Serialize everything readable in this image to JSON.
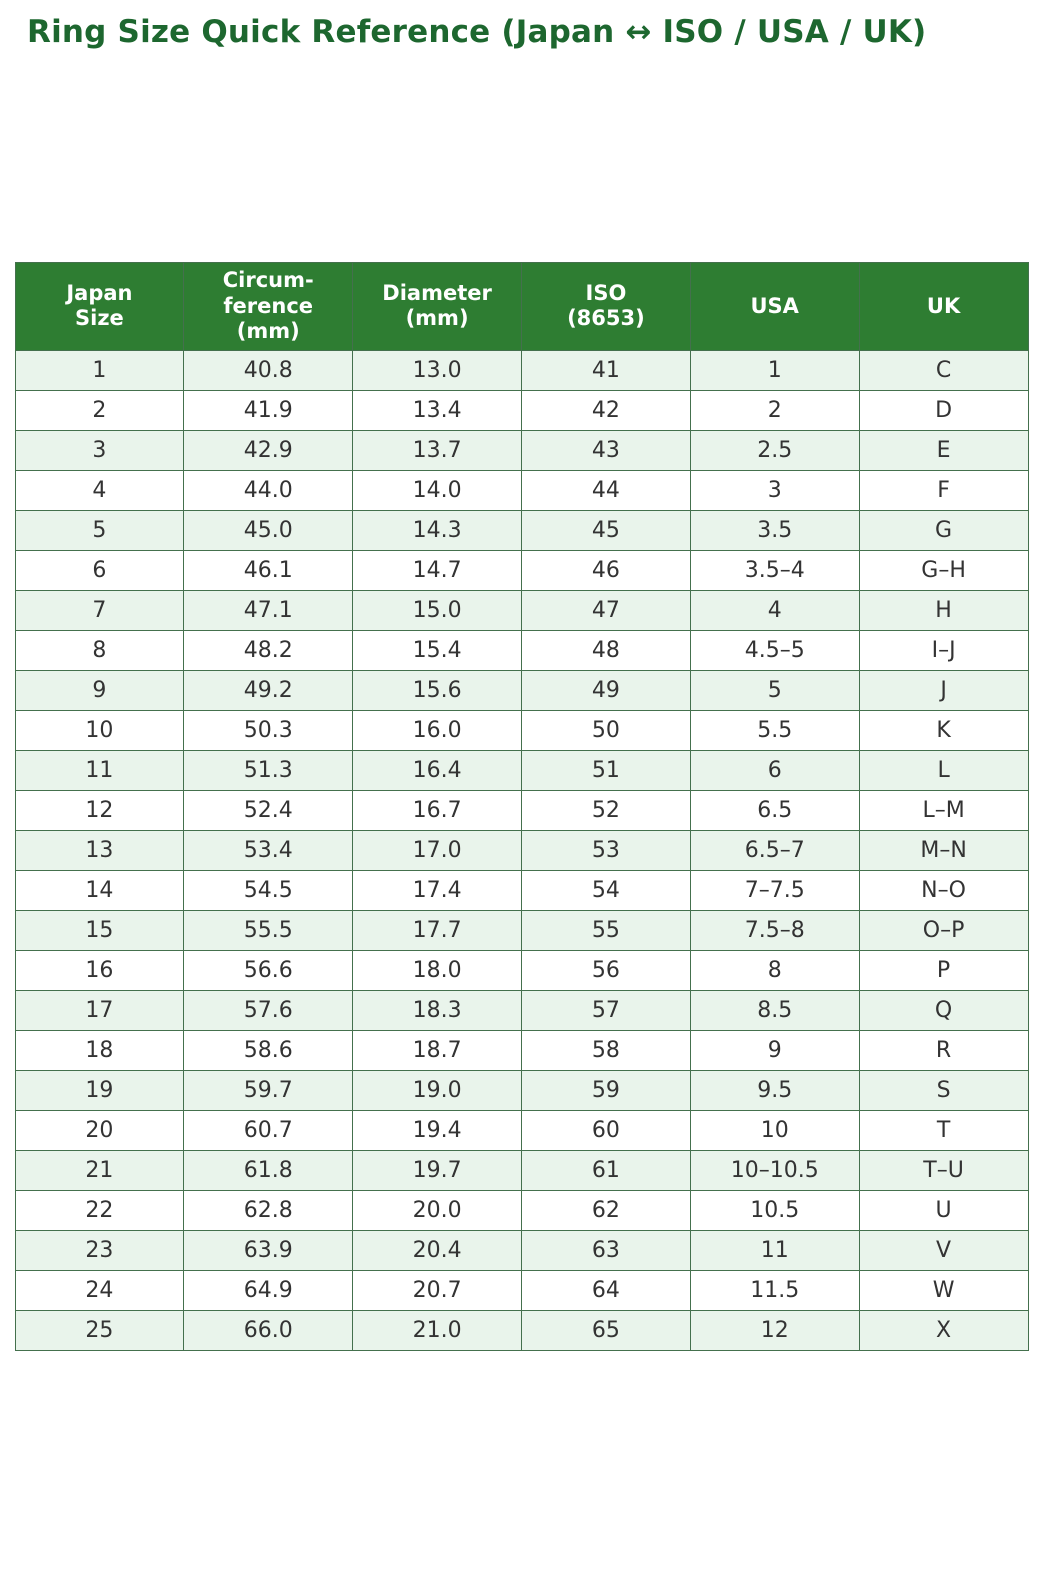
{
  "page": {
    "title": "Ring Size Quick Reference (Japan ↔ ISO / USA / UK)"
  },
  "colors": {
    "title_green": "#1d672f",
    "header_bg": "#2e7d32",
    "header_text": "#ffffff",
    "row_alt_bg": "#e9f4eb",
    "border": "#44704d",
    "cell_text": "#333333"
  },
  "chart_data": {
    "type": "table",
    "title": "Ring Size Quick Reference (Japan ↔ ISO / USA / UK)",
    "columns": [
      "Japan\nSize",
      "Circum-\nference\n(mm)",
      "Diameter\n(mm)",
      "ISO\n(8653)",
      "USA",
      "UK"
    ],
    "rows": [
      [
        "1",
        "40.8",
        "13.0",
        "41",
        "1",
        "C"
      ],
      [
        "2",
        "41.9",
        "13.4",
        "42",
        "2",
        "D"
      ],
      [
        "3",
        "42.9",
        "13.7",
        "43",
        "2.5",
        "E"
      ],
      [
        "4",
        "44.0",
        "14.0",
        "44",
        "3",
        "F"
      ],
      [
        "5",
        "45.0",
        "14.3",
        "45",
        "3.5",
        "G"
      ],
      [
        "6",
        "46.1",
        "14.7",
        "46",
        "3.5–4",
        "G–H"
      ],
      [
        "7",
        "47.1",
        "15.0",
        "47",
        "4",
        "H"
      ],
      [
        "8",
        "48.2",
        "15.4",
        "48",
        "4.5–5",
        "I–J"
      ],
      [
        "9",
        "49.2",
        "15.6",
        "49",
        "5",
        "J"
      ],
      [
        "10",
        "50.3",
        "16.0",
        "50",
        "5.5",
        "K"
      ],
      [
        "11",
        "51.3",
        "16.4",
        "51",
        "6",
        "L"
      ],
      [
        "12",
        "52.4",
        "16.7",
        "52",
        "6.5",
        "L–M"
      ],
      [
        "13",
        "53.4",
        "17.0",
        "53",
        "6.5–7",
        "M–N"
      ],
      [
        "14",
        "54.5",
        "17.4",
        "54",
        "7–7.5",
        "N–O"
      ],
      [
        "15",
        "55.5",
        "17.7",
        "55",
        "7.5–8",
        "O–P"
      ],
      [
        "16",
        "56.6",
        "18.0",
        "56",
        "8",
        "P"
      ],
      [
        "17",
        "57.6",
        "18.3",
        "57",
        "8.5",
        "Q"
      ],
      [
        "18",
        "58.6",
        "18.7",
        "58",
        "9",
        "R"
      ],
      [
        "19",
        "59.7",
        "19.0",
        "59",
        "9.5",
        "S"
      ],
      [
        "20",
        "60.7",
        "19.4",
        "60",
        "10",
        "T"
      ],
      [
        "21",
        "61.8",
        "19.7",
        "61",
        "10–10.5",
        "T–U"
      ],
      [
        "22",
        "62.8",
        "20.0",
        "62",
        "10.5",
        "U"
      ],
      [
        "23",
        "63.9",
        "20.4",
        "63",
        "11",
        "V"
      ],
      [
        "24",
        "64.9",
        "20.7",
        "64",
        "11.5",
        "W"
      ],
      [
        "25",
        "66.0",
        "21.0",
        "65",
        "12",
        "X"
      ]
    ]
  }
}
